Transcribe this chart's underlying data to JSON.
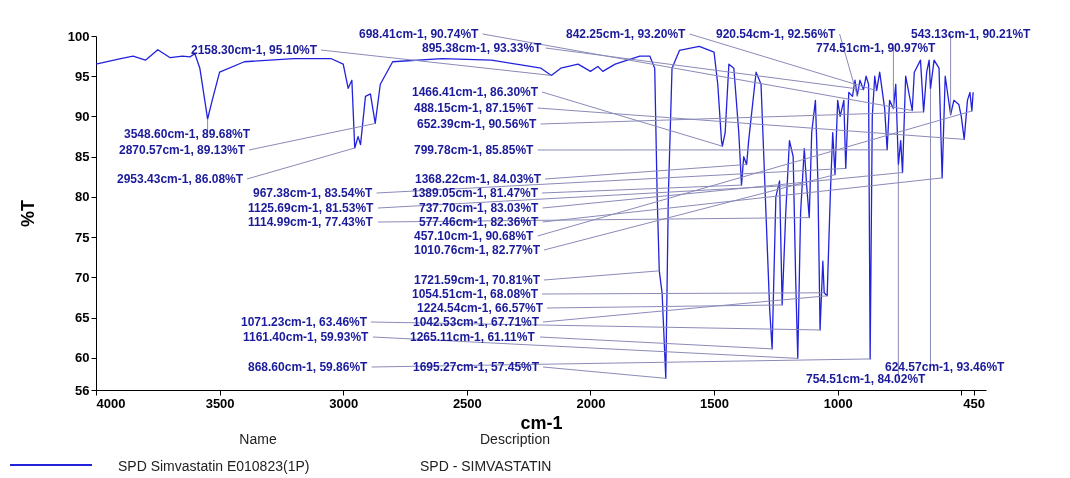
{
  "chart_data": {
    "type": "line",
    "xlabel": "cm-1",
    "ylabel": "%T",
    "legend_title": "Name",
    "legend": "bottom",
    "grid": false,
    "xlim": [
      4000,
      400
    ],
    "xticks": [
      4000,
      3500,
      3000,
      2500,
      2000,
      1500,
      1000,
      {
        "value": 500,
        "label": null
      },
      450
    ],
    "ylim": [
      56,
      100
    ],
    "yticks": [
      56,
      60,
      65,
      70,
      75,
      80,
      85,
      90,
      95,
      100
    ],
    "series": [
      {
        "name": "SPD Simvastatin E010823(1P)",
        "color": "#2222dd",
        "x": [
          4000,
          3900,
          3850,
          3800,
          3750,
          3700,
          3650,
          3620,
          3600,
          3580,
          3560,
          3548.6,
          3530,
          3500,
          3400,
          3200,
          3050,
          3000,
          2980,
          2965,
          2953.43,
          2940,
          2930,
          2910,
          2890,
          2870.57,
          2850,
          2800,
          2600,
          2400,
          2300,
          2200,
          2158.3,
          2120,
          2050,
          2000,
          1970,
          1950,
          1900,
          1800,
          1760,
          1740,
          1730,
          1721.59,
          1710,
          1695.27,
          1685,
          1670,
          1640,
          1560,
          1500,
          1485,
          1470,
          1466.41,
          1455,
          1440,
          1420,
          1400,
          1389.05,
          1380,
          1368.22,
          1360,
          1330,
          1310,
          1290,
          1275,
          1265.11,
          1250,
          1235,
          1224.54,
          1210,
          1195,
          1180,
          1170,
          1161.4,
          1150,
          1135,
          1125.69,
          1114.99,
          1105,
          1090,
          1080,
          1071.23,
          1060,
          1054.51,
          1042.53,
          1030,
          1020,
          1010.76,
          1000,
          990,
          975,
          967.38,
          955,
          940,
          930,
          920.54,
          910,
          895.38,
          885,
          875,
          868.6,
          860,
          850,
          842.25,
          830,
          810,
          799.78,
          790,
          774.51,
          765,
          754.51,
          745,
          737.7,
          725,
          698.41,
          690,
          665,
          652.39,
          640,
          630,
          624.57,
          610,
          590,
          577.46,
          565,
          543.13,
          530,
          510,
          500,
          488.15,
          475,
          465,
          457.1,
          452
        ],
        "values": [
          96.5,
          97.2,
          97.5,
          97,
          98.3,
          97.3,
          97.5,
          97.4,
          97.8,
          96,
          92,
          89.68,
          92,
          95.5,
          96.8,
          97.2,
          97.2,
          96.5,
          93.5,
          94.5,
          86.08,
          87.5,
          86.5,
          92.5,
          92.8,
          89.13,
          94,
          96.8,
          97.2,
          97,
          96.5,
          96,
          95.1,
          96,
          96.5,
          95.6,
          96.2,
          95.6,
          96.5,
          97.5,
          97.5,
          96,
          80,
          70.81,
          68,
          57.45,
          80,
          96,
          98.2,
          98.7,
          98,
          94,
          87,
          86.3,
          88,
          96.5,
          96,
          88,
          81.47,
          85,
          84.03,
          87,
          95.5,
          94,
          78,
          66,
          61.11,
          80,
          82,
          66.57,
          78,
          87,
          85,
          70,
          59.93,
          78,
          86,
          81.53,
          77.43,
          88,
          92,
          82,
          63.46,
          72,
          68.08,
          67.71,
          80,
          88,
          82.77,
          92,
          90,
          92,
          83.54,
          93,
          92.5,
          94.5,
          92.56,
          94.5,
          93.33,
          95,
          94,
          59.86,
          90,
          95,
          93.2,
          95.5,
          91,
          85.85,
          92,
          90.97,
          94,
          84.02,
          87,
          83.03,
          95,
          90.74,
          95.5,
          97,
          90.56,
          95.5,
          97,
          93.46,
          97,
          96,
          82.36,
          95,
          90.21,
          92,
          91.5,
          90,
          87.15,
          92,
          93,
          90.68,
          93
        ]
      }
    ],
    "annotations": [
      {
        "text": "2158.30cm-1, 95.10%T",
        "x": 2158.3,
        "y": 95.1
      },
      {
        "text": "698.41cm-1, 90.74%T",
        "x": 698.41,
        "y": 90.74
      },
      {
        "text": "895.38cm-1, 93.33%T",
        "x": 895.38,
        "y": 93.33
      },
      {
        "text": "1466.41cm-1, 86.30%T",
        "x": 1466.41,
        "y": 86.3
      },
      {
        "text": "488.15cm-1, 87.15%T",
        "x": 488.15,
        "y": 87.15
      },
      {
        "text": "652.39cm-1, 90.56%T",
        "x": 652.39,
        "y": 90.56
      },
      {
        "text": "799.78cm-1, 85.85%T",
        "x": 799.78,
        "y": 85.85
      },
      {
        "text": "3548.60cm-1, 89.68%T",
        "x": 3548.6,
        "y": 89.68
      },
      {
        "text": "2870.57cm-1, 89.13%T",
        "x": 2870.57,
        "y": 89.13
      },
      {
        "text": "2953.43cm-1, 86.08%T",
        "x": 2953.43,
        "y": 86.08
      },
      {
        "text": "1368.22cm-1, 84.03%T",
        "x": 1368.22,
        "y": 84.03
      },
      {
        "text": "967.38cm-1, 83.54%T",
        "x": 967.38,
        "y": 83.54
      },
      {
        "text": "1389.05cm-1, 81.47%T",
        "x": 1389.05,
        "y": 81.47
      },
      {
        "text": "1125.69cm-1, 81.53%T",
        "x": 1125.69,
        "y": 81.53
      },
      {
        "text": "737.70cm-1, 83.03%T",
        "x": 737.7,
        "y": 83.03
      },
      {
        "text": "1114.99cm-1, 77.43%T",
        "x": 1114.99,
        "y": 77.43
      },
      {
        "text": "577.46cm-1, 82.36%T",
        "x": 577.46,
        "y": 82.36
      },
      {
        "text": "457.10cm-1, 90.68%T",
        "x": 457.1,
        "y": 90.68
      },
      {
        "text": "1010.76cm-1, 82.77%T",
        "x": 1010.76,
        "y": 82.77
      },
      {
        "text": "1721.59cm-1, 70.81%T",
        "x": 1721.59,
        "y": 70.81
      },
      {
        "text": "1054.51cm-1, 68.08%T",
        "x": 1054.51,
        "y": 68.08
      },
      {
        "text": "1224.54cm-1, 66.57%T",
        "x": 1224.54,
        "y": 66.57
      },
      {
        "text": "1071.23cm-1, 63.46%T",
        "x": 1071.23,
        "y": 63.46
      },
      {
        "text": "1042.53cm-1, 67.71%T",
        "x": 1042.53,
        "y": 67.71
      },
      {
        "text": "1161.40cm-1, 59.93%T",
        "x": 1161.4,
        "y": 59.93
      },
      {
        "text": "1265.11cm-1, 61.11%T",
        "x": 1265.11,
        "y": 61.11
      },
      {
        "text": "868.60cm-1, 59.86%T",
        "x": 868.6,
        "y": 59.86
      },
      {
        "text": "1695.27cm-1, 57.45%T",
        "x": 1695.27,
        "y": 57.45
      },
      {
        "text": "842.25cm-1, 93.20%T",
        "x": 842.25,
        "y": 93.2
      },
      {
        "text": "920.54cm-1, 92.56%T",
        "x": 920.54,
        "y": 92.56
      },
      {
        "text": "774.51cm-1, 90.97%T",
        "x": 774.51,
        "y": 90.97
      },
      {
        "text": "543.13cm-1, 90.21%T",
        "x": 543.13,
        "y": 90.21
      },
      {
        "text": "624.57cm-1, 93.46%T",
        "x": 624.57,
        "y": 93.46
      },
      {
        "text": "754.51cm-1, 84.02%T",
        "x": 754.51,
        "y": 84.02
      },
      "Description",
      "SPD - SIMVASTATIN"
    ]
  }
}
